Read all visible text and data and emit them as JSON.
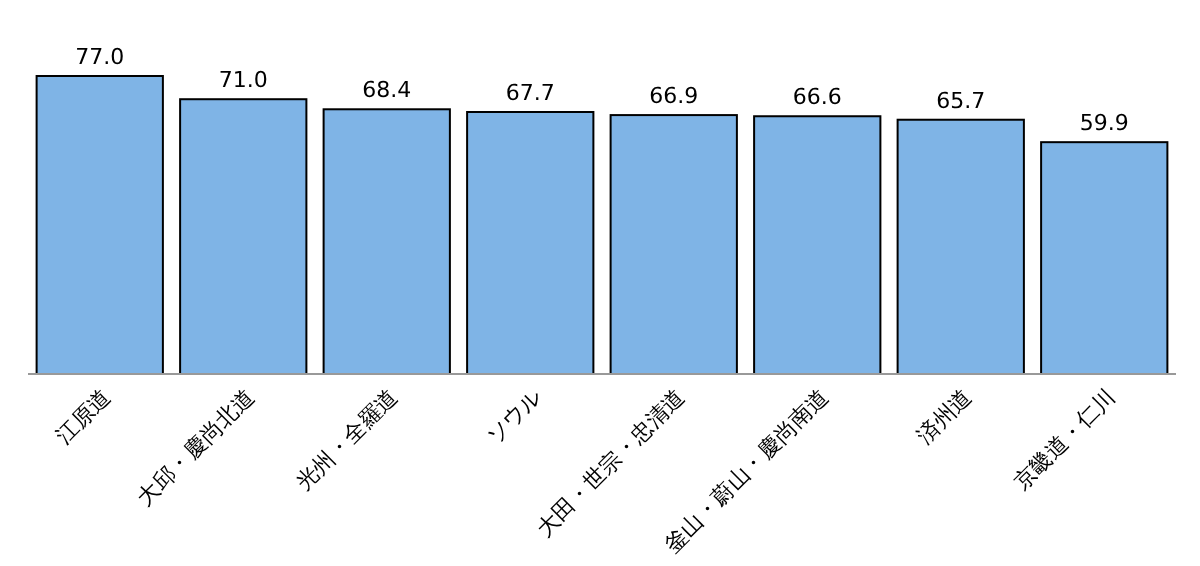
{
  "chart_data": {
    "type": "bar",
    "categories": [
      "江原道",
      "大邱・慶尚北道",
      "光州・全羅道",
      "ソウル",
      "大田・世宗・忠清道",
      "釜山・蔚山・慶尚南道",
      "済州道",
      "京畿道・仁川"
    ],
    "values": [
      77.0,
      71.0,
      68.4,
      67.7,
      66.9,
      66.6,
      65.7,
      59.9
    ],
    "value_labels": [
      "77.0",
      "71.0",
      "68.4",
      "67.7",
      "66.9",
      "66.6",
      "65.7",
      "59.9"
    ],
    "color": "#7fb4e6"
  }
}
